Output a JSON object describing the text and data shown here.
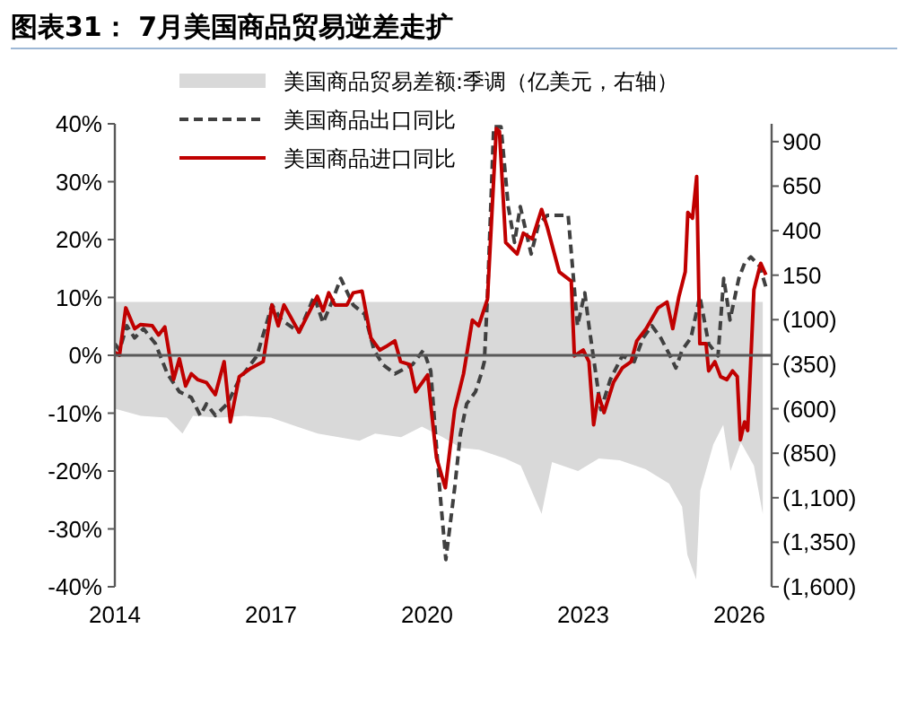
{
  "chart_data": {
    "type": "line",
    "title": "图表31： 7月美国商品贸易逆差走扩",
    "xlim": [
      2014,
      2026.62
    ],
    "xticks": [
      2014,
      2017,
      2020,
      2023,
      2026
    ],
    "ylim": [
      -40,
      40
    ],
    "yticks": [
      {
        "value": 40,
        "label": "40%"
      },
      {
        "value": 30,
        "label": "30%"
      },
      {
        "value": 20,
        "label": "20%"
      },
      {
        "value": 10,
        "label": "10%"
      },
      {
        "value": 0,
        "label": "0%"
      },
      {
        "value": -10,
        "label": "-10%"
      },
      {
        "value": -20,
        "label": "-20%"
      },
      {
        "value": -30,
        "label": "-30%"
      },
      {
        "value": -40,
        "label": "-40%"
      }
    ],
    "y2lim": [
      -1600,
      1000
    ],
    "y2ticks": [
      900,
      650,
      400,
      150,
      {
        "value": -100,
        "label": "(100)"
      },
      {
        "value": -350,
        "label": "(350)"
      },
      {
        "value": -600,
        "label": "(600)"
      },
      {
        "value": -850,
        "label": "(850)"
      },
      {
        "value": -1100,
        "label": "(1,100)"
      },
      {
        "value": -1350,
        "label": "(1,350)"
      },
      {
        "value": -1600,
        "label": "(1,600)"
      }
    ],
    "legend": "top",
    "grid": false,
    "ref_lines": [
      {
        "axis": "y",
        "value": 0,
        "color": "#595959"
      }
    ],
    "series": [
      {
        "name": "美国商品贸易差额:季调（亿美元，右轴）",
        "type": "area",
        "axis": "y2",
        "color": "#d9d9d9",
        "x": [
          2014.0,
          2014.5,
          2015.0,
          2015.3,
          2015.5,
          2016.0,
          2016.5,
          2017.0,
          2017.5,
          2017.9,
          2018.3,
          2018.7,
          2019.0,
          2019.5,
          2019.9,
          2020.3,
          2020.65,
          2021.0,
          2021.5,
          2021.8,
          2022.2,
          2022.4,
          2022.9,
          2023.3,
          2023.7,
          2024.2,
          2024.65,
          2024.9,
          2025.0,
          2025.17,
          2025.25,
          2025.5,
          2025.69,
          2025.83,
          2026.03,
          2026.28,
          2026.45
        ],
        "values": [
          -600,
          -640,
          -650,
          -740,
          -640,
          -650,
          -640,
          -650,
          -700,
          -740,
          -760,
          -780,
          -740,
          -760,
          -700,
          -760,
          -820,
          -830,
          -880,
          -920,
          -1190,
          -900,
          -950,
          -880,
          -890,
          -940,
          -1020,
          -1150,
          -1420,
          -1560,
          -1060,
          -800,
          -690,
          -950,
          -790,
          -920,
          -1190
        ]
      },
      {
        "name": "美国商品出口同比",
        "line_style": "dashed",
        "color": "#404040",
        "x": [
          2014.0,
          2014.09,
          2014.23,
          2014.38,
          2014.55,
          2014.78,
          2015.01,
          2015.24,
          2015.47,
          2015.64,
          2015.76,
          2015.93,
          2016.16,
          2016.39,
          2016.73,
          2017.02,
          2017.2,
          2017.54,
          2017.83,
          2018.0,
          2018.17,
          2018.34,
          2018.58,
          2018.8,
          2018.98,
          2019.15,
          2019.38,
          2019.72,
          2019.93,
          2020.07,
          2020.24,
          2020.36,
          2020.53,
          2020.64,
          2020.76,
          2020.93,
          2021.04,
          2021.1,
          2021.16,
          2021.28,
          2021.42,
          2021.56,
          2021.68,
          2021.79,
          2022.0,
          2022.14,
          2022.31,
          2022.54,
          2022.71,
          2022.89,
          2023.03,
          2023.11,
          2023.34,
          2023.52,
          2023.75,
          2023.98,
          2024.15,
          2024.32,
          2024.49,
          2024.67,
          2024.78,
          2024.9,
          2025.07,
          2025.24,
          2025.41,
          2025.59,
          2025.7,
          2025.82,
          2025.99,
          2026.1,
          2026.22,
          2026.39,
          2026.51
        ],
        "values": [
          2.0,
          0.9,
          5.1,
          3.0,
          4.6,
          2.0,
          -3.2,
          -6.3,
          -7.3,
          -10.4,
          -8.4,
          -10.4,
          -8.4,
          -4.2,
          -0.1,
          8.7,
          6.1,
          4.0,
          10.2,
          5.6,
          9.2,
          13.3,
          8.7,
          7.1,
          0.9,
          -1.6,
          -3.2,
          -1.6,
          0.9,
          -2.7,
          -22.9,
          -35.3,
          -22.9,
          -13.6,
          -8.4,
          -6.3,
          -3.2,
          -1.1,
          10.2,
          39.5,
          39.5,
          25.7,
          19.5,
          25.7,
          17.5,
          22.6,
          24.2,
          24.2,
          24.2,
          5.1,
          10.8,
          5.1,
          -9.4,
          -4.2,
          -0.1,
          -1.1,
          3.0,
          5.1,
          3.0,
          -0.1,
          -2.2,
          0.9,
          3.0,
          10.2,
          2.0,
          -0.1,
          13.3,
          6.1,
          13.3,
          15.9,
          17.0,
          15.4,
          11.8
        ]
      },
      {
        "name": "美国商品进口同比",
        "line_style": "solid",
        "color": "#c00000",
        "x": [
          2014.0,
          2014.09,
          2014.21,
          2014.38,
          2014.49,
          2014.72,
          2014.84,
          2014.96,
          2015.13,
          2015.24,
          2015.36,
          2015.47,
          2015.59,
          2015.76,
          2015.93,
          2016.1,
          2016.22,
          2016.39,
          2016.62,
          2016.85,
          2017.02,
          2017.14,
          2017.25,
          2017.54,
          2017.89,
          2018.0,
          2018.11,
          2018.23,
          2018.46,
          2018.58,
          2018.75,
          2018.92,
          2019.09,
          2019.21,
          2019.38,
          2019.49,
          2019.67,
          2019.78,
          2020.01,
          2020.18,
          2020.35,
          2020.53,
          2020.7,
          2020.87,
          2020.99,
          2021.16,
          2021.33,
          2021.39,
          2021.51,
          2021.73,
          2021.85,
          2022.02,
          2022.2,
          2022.31,
          2022.54,
          2022.77,
          2022.83,
          2023.0,
          2023.11,
          2023.2,
          2023.29,
          2023.4,
          2023.58,
          2023.75,
          2023.92,
          2024.03,
          2024.21,
          2024.44,
          2024.61,
          2024.72,
          2024.84,
          2024.96,
          2025.01,
          2025.1,
          2025.18,
          2025.24,
          2025.36,
          2025.41,
          2025.53,
          2025.64,
          2025.76,
          2025.87,
          2025.96,
          2026.02,
          2026.1,
          2026.16,
          2026.28,
          2026.41,
          2026.51
        ],
        "values": [
          0.5,
          0,
          8.2,
          4.6,
          5.3,
          5.1,
          3.5,
          4.9,
          -4.2,
          -0.6,
          -5.3,
          -3.2,
          -4.2,
          -4.7,
          -6.8,
          -1.1,
          -11.5,
          -3.7,
          -2.2,
          -1.1,
          8.7,
          5.1,
          8.7,
          4.0,
          10.2,
          7.7,
          10.8,
          8.7,
          8.7,
          10.8,
          11.1,
          3.0,
          0.9,
          1.5,
          2.5,
          -1.1,
          -1.6,
          -6.3,
          -3.4,
          -17.7,
          -22.9,
          -9.4,
          -3.2,
          6.1,
          5.1,
          9.7,
          39.2,
          38.7,
          19.5,
          17.5,
          21.1,
          20.1,
          25.2,
          22.1,
          14.4,
          12.8,
          -0.1,
          0.9,
          -1.1,
          -12.0,
          -6.8,
          -9.9,
          -4.7,
          -2.2,
          -1.1,
          2.5,
          4.6,
          8.2,
          9.2,
          4.6,
          10.2,
          14.4,
          24.7,
          23.7,
          30.9,
          2.0,
          2.0,
          -2.7,
          -1.1,
          -3.7,
          -4.2,
          -2.7,
          -3.7,
          -14.6,
          -11.5,
          -13.0,
          11.3,
          15.9,
          13.9
        ]
      }
    ]
  }
}
